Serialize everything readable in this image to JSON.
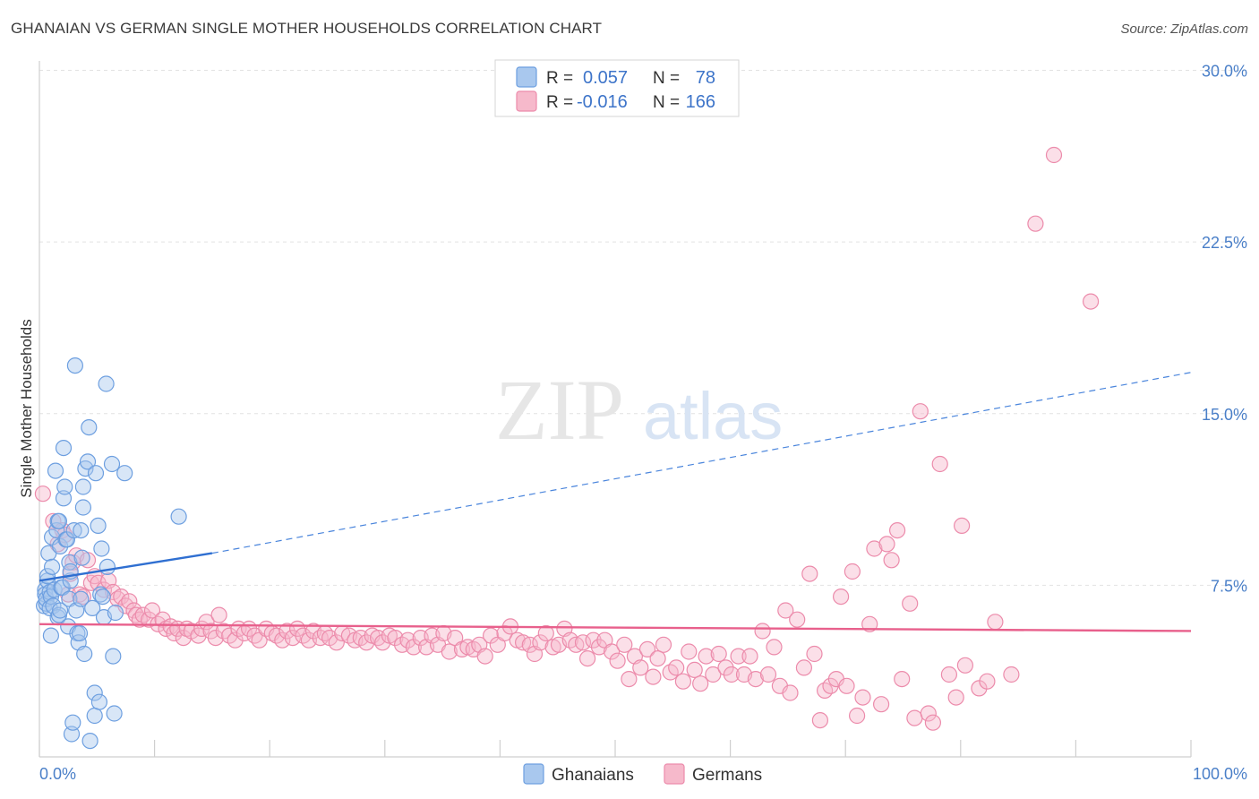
{
  "title": "GHANAIAN VS GERMAN SINGLE MOTHER HOUSEHOLDS CORRELATION CHART",
  "source": "Source: ZipAtlas.com",
  "watermark": {
    "zip": "ZIP",
    "atlas": "atlas"
  },
  "legend": [
    {
      "r_label": "R =",
      "r_value": "0.057",
      "n_label": "N =",
      "n_value": "78",
      "color": "#a9c8ee",
      "stroke": "#6d9fe0"
    },
    {
      "r_label": "R =",
      "r_value": "-0.016",
      "n_label": "N =",
      "n_value": "166",
      "color": "#f6b9cb",
      "stroke": "#ec8bab"
    }
  ],
  "bottom_legend": [
    {
      "label": "Ghanaians",
      "color": "#a9c8ee",
      "stroke": "#6d9fe0"
    },
    {
      "label": "Germans",
      "color": "#f6b9cb",
      "stroke": "#ec8bab"
    }
  ],
  "chart_data": {
    "type": "scatter",
    "title": "GHANAIAN VS GERMAN SINGLE MOTHER HOUSEHOLDS CORRELATION CHART",
    "xlabel": "",
    "ylabel": "Single Mother Households",
    "xlim": [
      0,
      100
    ],
    "ylim": [
      0,
      30
    ],
    "x_tick_labels": [
      "0.0%",
      "100.0%"
    ],
    "y_ticks": [
      7.5,
      15.0,
      22.5,
      30.0
    ],
    "y_tick_labels": [
      "7.5%",
      "15.0%",
      "22.5%",
      "30.0%"
    ],
    "grid": "horizontal dashed",
    "legend_position": "top-center",
    "series": [
      {
        "name": "Ghanaians",
        "color": "#6d9fe0",
        "fill": "#a9c8ee",
        "trend": {
          "x": [
            0,
            15,
            100
          ],
          "y": [
            7.7,
            8.9,
            16.8
          ],
          "solid_until": 15
        },
        "points": [
          [
            0.4,
            6.6
          ],
          [
            0.5,
            7.3
          ],
          [
            0.5,
            7.1
          ],
          [
            0.6,
            6.7
          ],
          [
            0.6,
            6.9
          ],
          [
            0.7,
            7.7
          ],
          [
            0.7,
            7.9
          ],
          [
            0.8,
            8.9
          ],
          [
            0.9,
            7.2
          ],
          [
            0.9,
            6.5
          ],
          [
            1.0,
            7.0
          ],
          [
            1.0,
            5.3
          ],
          [
            1.1,
            9.6
          ],
          [
            1.1,
            8.3
          ],
          [
            1.2,
            6.6
          ],
          [
            1.3,
            7.3
          ],
          [
            1.4,
            12.5
          ],
          [
            1.5,
            9.9
          ],
          [
            1.6,
            10.3
          ],
          [
            1.6,
            6.1
          ],
          [
            1.7,
            6.2
          ],
          [
            1.7,
            10.3
          ],
          [
            1.8,
            6.4
          ],
          [
            1.8,
            9.2
          ],
          [
            1.9,
            7.4
          ],
          [
            2.0,
            7.4
          ],
          [
            2.1,
            13.5
          ],
          [
            2.1,
            11.3
          ],
          [
            2.2,
            11.8
          ],
          [
            2.3,
            9.5
          ],
          [
            2.4,
            9.5
          ],
          [
            2.5,
            5.7
          ],
          [
            2.6,
            6.9
          ],
          [
            2.6,
            8.5
          ],
          [
            2.7,
            7.7
          ],
          [
            2.7,
            8.1
          ],
          [
            2.8,
            1.0
          ],
          [
            2.9,
            1.5
          ],
          [
            3.0,
            9.9
          ],
          [
            3.1,
            17.1
          ],
          [
            3.2,
            6.4
          ],
          [
            3.3,
            5.4
          ],
          [
            3.4,
            5.0
          ],
          [
            3.5,
            5.4
          ],
          [
            3.6,
            6.9
          ],
          [
            3.6,
            9.9
          ],
          [
            3.7,
            8.7
          ],
          [
            3.8,
            11.8
          ],
          [
            3.8,
            10.9
          ],
          [
            3.9,
            4.5
          ],
          [
            4.0,
            12.6
          ],
          [
            4.2,
            12.9
          ],
          [
            4.3,
            14.4
          ],
          [
            4.4,
            0.7
          ],
          [
            4.6,
            6.5
          ],
          [
            4.8,
            2.8
          ],
          [
            4.8,
            1.8
          ],
          [
            4.9,
            12.4
          ],
          [
            5.1,
            10.1
          ],
          [
            5.2,
            2.4
          ],
          [
            5.3,
            7.1
          ],
          [
            5.4,
            9.1
          ],
          [
            5.5,
            7.0
          ],
          [
            5.6,
            6.1
          ],
          [
            5.8,
            16.3
          ],
          [
            5.9,
            8.3
          ],
          [
            6.3,
            12.8
          ],
          [
            6.4,
            4.4
          ],
          [
            6.5,
            1.9
          ],
          [
            6.6,
            6.3
          ],
          [
            7.4,
            12.4
          ],
          [
            12.1,
            10.5
          ]
        ]
      },
      {
        "name": "Germans",
        "color": "#ec8bab",
        "fill": "#f6b9cb",
        "trend": {
          "x": [
            0,
            100
          ],
          "y": [
            5.8,
            5.5
          ]
        },
        "points": [
          [
            0.3,
            11.5
          ],
          [
            1.2,
            10.3
          ],
          [
            1.6,
            9.3
          ],
          [
            2.0,
            9.9
          ],
          [
            2.2,
            9.7
          ],
          [
            2.5,
            7.1
          ],
          [
            2.7,
            8.0
          ],
          [
            2.9,
            8.5
          ],
          [
            3.2,
            8.8
          ],
          [
            3.5,
            7.1
          ],
          [
            3.8,
            7.0
          ],
          [
            4.2,
            8.6
          ],
          [
            4.5,
            7.6
          ],
          [
            4.8,
            7.9
          ],
          [
            5.1,
            7.6
          ],
          [
            5.6,
            7.3
          ],
          [
            6.0,
            7.7
          ],
          [
            6.4,
            7.2
          ],
          [
            6.8,
            6.9
          ],
          [
            7.1,
            7.0
          ],
          [
            7.5,
            6.6
          ],
          [
            7.8,
            6.8
          ],
          [
            8.2,
            6.4
          ],
          [
            8.4,
            6.2
          ],
          [
            8.7,
            6.0
          ],
          [
            9.0,
            6.2
          ],
          [
            9.5,
            6.0
          ],
          [
            9.8,
            6.4
          ],
          [
            10.3,
            5.8
          ],
          [
            10.7,
            6.0
          ],
          [
            11.0,
            5.6
          ],
          [
            11.4,
            5.7
          ],
          [
            11.7,
            5.4
          ],
          [
            12.0,
            5.6
          ],
          [
            12.5,
            5.2
          ],
          [
            12.8,
            5.6
          ],
          [
            13.2,
            5.5
          ],
          [
            13.8,
            5.3
          ],
          [
            14.1,
            5.6
          ],
          [
            14.5,
            5.9
          ],
          [
            14.9,
            5.5
          ],
          [
            15.3,
            5.2
          ],
          [
            15.6,
            6.2
          ],
          [
            16.0,
            5.5
          ],
          [
            16.5,
            5.3
          ],
          [
            17.0,
            5.1
          ],
          [
            17.3,
            5.6
          ],
          [
            17.8,
            5.4
          ],
          [
            18.2,
            5.6
          ],
          [
            18.7,
            5.3
          ],
          [
            19.1,
            5.1
          ],
          [
            19.7,
            5.6
          ],
          [
            20.2,
            5.4
          ],
          [
            20.6,
            5.3
          ],
          [
            21.1,
            5.1
          ],
          [
            21.5,
            5.5
          ],
          [
            22.0,
            5.2
          ],
          [
            22.4,
            5.6
          ],
          [
            22.9,
            5.3
          ],
          [
            23.4,
            5.1
          ],
          [
            23.8,
            5.5
          ],
          [
            24.4,
            5.2
          ],
          [
            24.8,
            5.4
          ],
          [
            25.2,
            5.2
          ],
          [
            25.8,
            5.0
          ],
          [
            26.3,
            5.4
          ],
          [
            26.9,
            5.3
          ],
          [
            27.4,
            5.1
          ],
          [
            27.9,
            5.2
          ],
          [
            28.4,
            5.0
          ],
          [
            28.9,
            5.3
          ],
          [
            29.4,
            5.2
          ],
          [
            29.8,
            5.0
          ],
          [
            30.4,
            5.3
          ],
          [
            30.9,
            5.2
          ],
          [
            31.5,
            4.9
          ],
          [
            32.0,
            5.1
          ],
          [
            32.5,
            4.8
          ],
          [
            33.1,
            5.2
          ],
          [
            33.6,
            4.8
          ],
          [
            34.1,
            5.3
          ],
          [
            34.6,
            4.9
          ],
          [
            35.1,
            5.4
          ],
          [
            35.6,
            4.6
          ],
          [
            36.1,
            5.2
          ],
          [
            36.7,
            4.7
          ],
          [
            37.2,
            4.8
          ],
          [
            37.7,
            4.7
          ],
          [
            38.2,
            4.9
          ],
          [
            38.7,
            4.4
          ],
          [
            39.2,
            5.3
          ],
          [
            39.8,
            4.9
          ],
          [
            40.4,
            5.4
          ],
          [
            40.9,
            5.7
          ],
          [
            41.5,
            5.1
          ],
          [
            42.0,
            5.0
          ],
          [
            42.6,
            4.9
          ],
          [
            43.0,
            4.5
          ],
          [
            43.5,
            5.0
          ],
          [
            44.0,
            5.4
          ],
          [
            44.6,
            4.8
          ],
          [
            45.1,
            4.9
          ],
          [
            45.6,
            5.6
          ],
          [
            46.1,
            5.1
          ],
          [
            46.6,
            4.9
          ],
          [
            47.2,
            5.0
          ],
          [
            47.6,
            4.3
          ],
          [
            48.1,
            5.1
          ],
          [
            48.6,
            4.8
          ],
          [
            49.1,
            5.1
          ],
          [
            49.7,
            4.6
          ],
          [
            50.2,
            4.2
          ],
          [
            50.8,
            4.9
          ],
          [
            51.2,
            3.4
          ],
          [
            51.7,
            4.4
          ],
          [
            52.2,
            3.9
          ],
          [
            52.8,
            4.7
          ],
          [
            53.3,
            3.5
          ],
          [
            53.7,
            4.3
          ],
          [
            54.2,
            4.9
          ],
          [
            54.8,
            3.7
          ],
          [
            55.3,
            3.9
          ],
          [
            55.9,
            3.3
          ],
          [
            56.4,
            4.6
          ],
          [
            56.9,
            3.8
          ],
          [
            57.4,
            3.2
          ],
          [
            57.9,
            4.4
          ],
          [
            58.5,
            3.6
          ],
          [
            59.0,
            4.5
          ],
          [
            59.6,
            3.9
          ],
          [
            60.1,
            3.6
          ],
          [
            60.7,
            4.4
          ],
          [
            61.2,
            3.6
          ],
          [
            61.7,
            4.4
          ],
          [
            62.2,
            3.4
          ],
          [
            62.8,
            5.5
          ],
          [
            63.3,
            3.6
          ],
          [
            63.8,
            4.8
          ],
          [
            64.3,
            3.1
          ],
          [
            64.8,
            6.4
          ],
          [
            65.2,
            2.8
          ],
          [
            65.8,
            6.0
          ],
          [
            66.4,
            3.9
          ],
          [
            66.9,
            8.0
          ],
          [
            67.3,
            4.5
          ],
          [
            67.8,
            1.6
          ],
          [
            68.2,
            2.9
          ],
          [
            68.7,
            3.1
          ],
          [
            69.2,
            3.4
          ],
          [
            69.6,
            7.0
          ],
          [
            70.1,
            3.1
          ],
          [
            70.6,
            8.1
          ],
          [
            71.0,
            1.8
          ],
          [
            71.5,
            2.6
          ],
          [
            72.1,
            5.8
          ],
          [
            72.5,
            9.1
          ],
          [
            73.1,
            2.3
          ],
          [
            73.6,
            9.3
          ],
          [
            74.0,
            8.6
          ],
          [
            74.5,
            9.9
          ],
          [
            74.9,
            3.4
          ],
          [
            75.6,
            6.7
          ],
          [
            76.0,
            1.7
          ],
          [
            76.5,
            15.1
          ],
          [
            77.2,
            1.9
          ],
          [
            77.6,
            1.5
          ],
          [
            78.2,
            12.8
          ],
          [
            79.0,
            3.6
          ],
          [
            79.6,
            2.6
          ],
          [
            80.1,
            10.1
          ],
          [
            80.4,
            4.0
          ],
          [
            81.6,
            3.0
          ],
          [
            82.3,
            3.3
          ],
          [
            83.0,
            5.9
          ],
          [
            84.4,
            3.6
          ],
          [
            86.5,
            23.3
          ],
          [
            88.1,
            26.3
          ],
          [
            91.3,
            19.9
          ]
        ]
      }
    ]
  }
}
